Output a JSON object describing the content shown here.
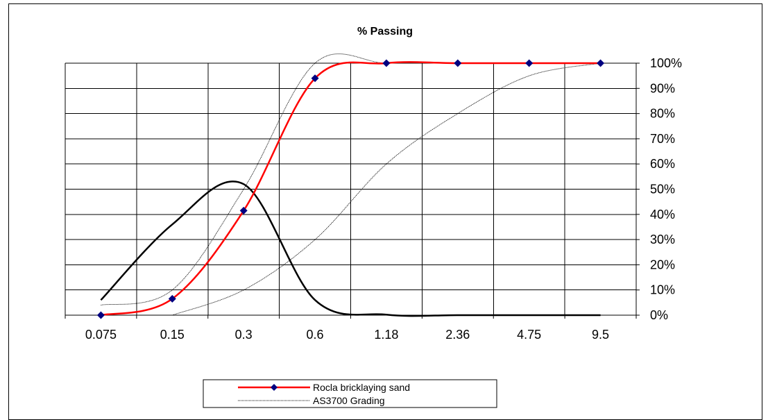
{
  "chart_data": {
    "type": "line",
    "title": "% Passing",
    "categories": [
      "0.075",
      "0.15",
      "0.3",
      "0.6",
      "1.18",
      "2.36",
      "4.75",
      "9.5"
    ],
    "y_tick_labels": [
      "0%",
      "10%",
      "20%",
      "30%",
      "40%",
      "50%",
      "60%",
      "70%",
      "80%",
      "90%",
      "100%"
    ],
    "ylim": [
      0,
      100
    ],
    "y_axis_side": "right",
    "grid": true,
    "legend_position": "bottom",
    "series": [
      {
        "name": "Rocla bricklaying sand",
        "color": "#ff0000",
        "marker": "diamond",
        "marker_color": "#000080",
        "values": [
          0,
          6.5,
          41.5,
          94,
          100,
          100,
          100,
          100
        ]
      },
      {
        "name": "AS3700 Grading",
        "color": "#000000",
        "style": "dotted",
        "upper_limit": [
          4,
          10,
          50,
          100,
          100,
          100,
          100,
          100
        ],
        "lower_limit": [
          null,
          0,
          10,
          30,
          60,
          80,
          95,
          100
        ]
      },
      {
        "color": "#000000",
        "values": [
          6,
          36,
          52,
          6,
          0.2,
          0,
          0,
          0
        ]
      }
    ]
  }
}
